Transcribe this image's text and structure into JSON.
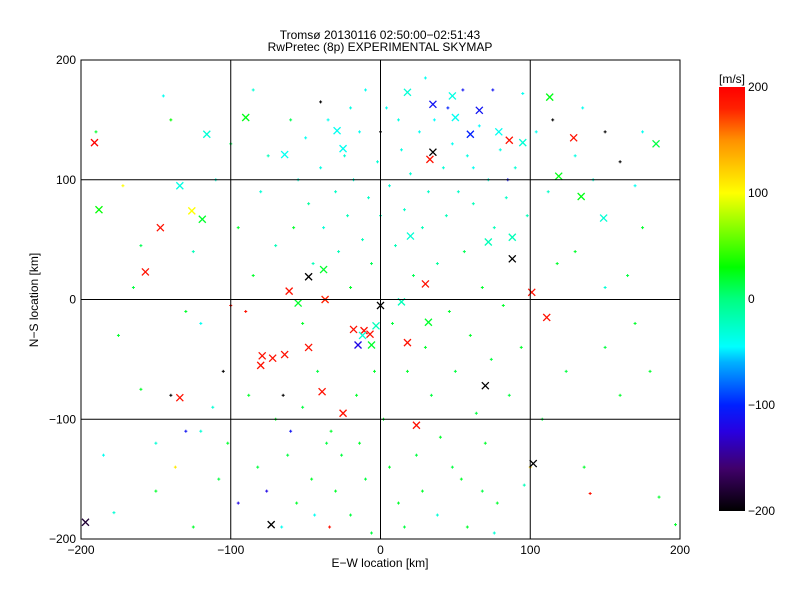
{
  "chart_data": {
    "type": "scatter",
    "title": "Tromsø 20130116 02:50:00−02:51:43",
    "subtitle": "RwPretec (8p) EXPERIMENTAL SKYMAP",
    "xlabel": "E−W location [km]",
    "ylabel": "N−S location [km]",
    "xlim": [
      -200,
      200
    ],
    "ylim": [
      -200,
      200
    ],
    "xticks": [
      -200,
      -100,
      0,
      100,
      200
    ],
    "yticks": [
      -200,
      -100,
      0,
      100,
      200
    ],
    "xtick_labels": [
      "−200",
      "−100",
      "0",
      "100",
      "200"
    ],
    "ytick_labels": [
      "−200",
      "−100",
      "0",
      "100",
      "200"
    ],
    "grid": true,
    "colorbar": {
      "label": "[m/s]",
      "range": [
        -200,
        200
      ],
      "ticks": [
        200,
        100,
        0,
        -100,
        -200
      ],
      "tick_labels": [
        "200",
        "100",
        "0",
        "−100",
        "−200"
      ],
      "stops": [
        {
          "v": -200,
          "color": "#000000"
        },
        {
          "v": -160,
          "color": "#40006a"
        },
        {
          "v": -125,
          "color": "#2800e0"
        },
        {
          "v": -100,
          "color": "#0020ff"
        },
        {
          "v": -60,
          "color": "#00b0ff"
        },
        {
          "v": -45,
          "color": "#00ffff"
        },
        {
          "v": 0,
          "color": "#00ff80"
        },
        {
          "v": 30,
          "color": "#00ff00"
        },
        {
          "v": 100,
          "color": "#ffff00"
        },
        {
          "v": 150,
          "color": "#ff9000"
        },
        {
          "v": 180,
          "color": "#ff2000"
        },
        {
          "v": 200,
          "color": "#ff0000"
        }
      ]
    },
    "series": [
      {
        "name": "large echoes (x markers)",
        "marker": "x",
        "points": [
          [
            -191,
            131,
            200
          ],
          [
            -188,
            75,
            30
          ],
          [
            -147,
            60,
            190
          ],
          [
            -157,
            23,
            190
          ],
          [
            -126,
            74,
            100
          ],
          [
            -119,
            67,
            20
          ],
          [
            -134,
            95,
            -35
          ],
          [
            -116,
            138,
            -30
          ],
          [
            -90,
            152,
            25
          ],
          [
            -48,
            19,
            -200
          ],
          [
            -38,
            25,
            20
          ],
          [
            -61,
            7,
            190
          ],
          [
            -37,
            0,
            180
          ],
          [
            -79,
            -47,
            190
          ],
          [
            -72,
            -49,
            190
          ],
          [
            -64,
            -46,
            190
          ],
          [
            -48,
            -40,
            190
          ],
          [
            -39,
            -77,
            190
          ],
          [
            -25,
            -95,
            190
          ],
          [
            -80,
            -55,
            190
          ],
          [
            -134,
            -82,
            190
          ],
          [
            -18,
            -25,
            190
          ],
          [
            -11,
            -26,
            190
          ],
          [
            -7,
            -29,
            190
          ],
          [
            -15,
            -38,
            -120
          ],
          [
            -6,
            -38,
            20
          ],
          [
            0,
            -5,
            -200
          ],
          [
            14,
            -2,
            -20
          ],
          [
            30,
            13,
            190
          ],
          [
            18,
            -36,
            190
          ],
          [
            32,
            -19,
            20
          ],
          [
            70,
            -72,
            -200
          ],
          [
            102,
            -137,
            -200
          ],
          [
            101,
            6,
            190
          ],
          [
            111,
            -15,
            190
          ],
          [
            24,
            -105,
            190
          ],
          [
            88,
            34,
            -200
          ],
          [
            88,
            52,
            -20
          ],
          [
            72,
            48,
            -20
          ],
          [
            35,
            123,
            -200
          ],
          [
            33,
            117,
            190
          ],
          [
            18,
            173,
            -30
          ],
          [
            35,
            163,
            -110
          ],
          [
            48,
            170,
            -35
          ],
          [
            66,
            158,
            -110
          ],
          [
            60,
            138,
            -100
          ],
          [
            79,
            140,
            -40
          ],
          [
            86,
            133,
            190
          ],
          [
            95,
            131,
            -30
          ],
          [
            113,
            169,
            25
          ],
          [
            129,
            135,
            190
          ],
          [
            134,
            86,
            25
          ],
          [
            149,
            68,
            -30
          ],
          [
            184,
            130,
            15
          ],
          [
            119,
            103,
            25
          ],
          [
            20,
            53,
            -30
          ],
          [
            -197,
            -186,
            -180
          ],
          [
            -73,
            -188,
            -200
          ],
          [
            -25,
            126,
            -40
          ],
          [
            -64,
            121,
            -40
          ],
          [
            -29,
            141,
            -40
          ],
          [
            50,
            152,
            -40
          ],
          [
            -12,
            -30,
            -30
          ],
          [
            -55,
            -3,
            20
          ],
          [
            -3,
            -22,
            -20
          ]
        ]
      },
      {
        "name": "small echoes (+ markers)",
        "marker": "+",
        "points": [
          [
            -160,
            45,
            10
          ],
          [
            -172,
            95,
            100
          ],
          [
            -140,
            150,
            30
          ],
          [
            -125,
            40,
            -20
          ],
          [
            -110,
            100,
            -30
          ],
          [
            -100,
            130,
            10
          ],
          [
            -95,
            60,
            20
          ],
          [
            -90,
            -10,
            190
          ],
          [
            -85,
            20,
            20
          ],
          [
            -80,
            90,
            -30
          ],
          [
            -75,
            120,
            -20
          ],
          [
            -70,
            45,
            -20
          ],
          [
            -65,
            -80,
            -200
          ],
          [
            -60,
            150,
            10
          ],
          [
            -58,
            60,
            20
          ],
          [
            -55,
            100,
            -30
          ],
          [
            -52,
            -20,
            20
          ],
          [
            -50,
            135,
            -40
          ],
          [
            -48,
            80,
            -10
          ],
          [
            -45,
            30,
            -20
          ],
          [
            -42,
            -60,
            15
          ],
          [
            -40,
            110,
            -35
          ],
          [
            -38,
            60,
            -30
          ],
          [
            -35,
            150,
            -40
          ],
          [
            -33,
            -110,
            20
          ],
          [
            -30,
            90,
            -25
          ],
          [
            -28,
            40,
            -20
          ],
          [
            -26,
            -130,
            15
          ],
          [
            -24,
            120,
            -30
          ],
          [
            -22,
            70,
            -20
          ],
          [
            -20,
            10,
            20
          ],
          [
            -18,
            100,
            -30
          ],
          [
            -16,
            -80,
            20
          ],
          [
            -14,
            140,
            -40
          ],
          [
            -12,
            50,
            -20
          ],
          [
            -10,
            -150,
            15
          ],
          [
            -8,
            85,
            -25
          ],
          [
            -6,
            30,
            10
          ],
          [
            -4,
            -60,
            20
          ],
          [
            -2,
            115,
            -30
          ],
          [
            0,
            70,
            -20
          ],
          [
            2,
            -100,
            20
          ],
          [
            4,
            160,
            -40
          ],
          [
            6,
            95,
            -30
          ],
          [
            8,
            -20,
            15
          ],
          [
            10,
            45,
            -20
          ],
          [
            12,
            -170,
            20
          ],
          [
            14,
            125,
            -35
          ],
          [
            16,
            75,
            -25
          ],
          [
            18,
            -60,
            20
          ],
          [
            20,
            105,
            -30
          ],
          [
            22,
            20,
            10
          ],
          [
            24,
            -130,
            15
          ],
          [
            26,
            140,
            -40
          ],
          [
            28,
            60,
            -20
          ],
          [
            30,
            -40,
            20
          ],
          [
            32,
            90,
            -25
          ],
          [
            34,
            -80,
            15
          ],
          [
            36,
            150,
            -45
          ],
          [
            38,
            30,
            -10
          ],
          [
            40,
            -115,
            20
          ],
          [
            42,
            110,
            -30
          ],
          [
            44,
            70,
            -20
          ],
          [
            46,
            -10,
            20
          ],
          [
            48,
            130,
            -40
          ],
          [
            50,
            -60,
            15
          ],
          [
            52,
            90,
            -25
          ],
          [
            54,
            -150,
            20
          ],
          [
            56,
            40,
            10
          ],
          [
            58,
            120,
            -35
          ],
          [
            60,
            -30,
            20
          ],
          [
            62,
            80,
            -20
          ],
          [
            64,
            -95,
            15
          ],
          [
            66,
            145,
            -45
          ],
          [
            68,
            10,
            20
          ],
          [
            70,
            -120,
            20
          ],
          [
            72,
            100,
            -30
          ],
          [
            74,
            -50,
            15
          ],
          [
            76,
            60,
            -20
          ],
          [
            78,
            -170,
            20
          ],
          [
            80,
            125,
            -35
          ],
          [
            82,
            -5,
            20
          ],
          [
            84,
            85,
            -25
          ],
          [
            86,
            -80,
            15
          ],
          [
            90,
            110,
            -30
          ],
          [
            94,
            -40,
            20
          ],
          [
            98,
            70,
            -20
          ],
          [
            104,
            140,
            -40
          ],
          [
            108,
            -100,
            15
          ],
          [
            112,
            90,
            -25
          ],
          [
            118,
            30,
            20
          ],
          [
            124,
            -60,
            15
          ],
          [
            130,
            120,
            -35
          ],
          [
            136,
            -140,
            20
          ],
          [
            142,
            100,
            -30
          ],
          [
            150,
            140,
            -200
          ],
          [
            160,
            115,
            -200
          ],
          [
            170,
            95,
            -40
          ],
          [
            186,
            -165,
            20
          ],
          [
            197,
            -188,
            20
          ],
          [
            -185,
            -130,
            -40
          ],
          [
            -178,
            -178,
            -30
          ],
          [
            -150,
            -160,
            20
          ],
          [
            -137,
            -140,
            110
          ],
          [
            -125,
            -190,
            20
          ],
          [
            -120,
            -110,
            -30
          ],
          [
            -108,
            -150,
            15
          ],
          [
            -102,
            -120,
            20
          ],
          [
            -95,
            -170,
            -120
          ],
          [
            -88,
            -80,
            20
          ],
          [
            -82,
            -140,
            15
          ],
          [
            -76,
            -160,
            -120
          ],
          [
            -70,
            -100,
            20
          ],
          [
            -66,
            -190,
            -40
          ],
          [
            -62,
            -130,
            15
          ],
          [
            -56,
            -170,
            20
          ],
          [
            -52,
            -90,
            15
          ],
          [
            -46,
            -150,
            20
          ],
          [
            -44,
            -180,
            -40
          ],
          [
            -36,
            -120,
            15
          ],
          [
            -34,
            -190,
            190
          ],
          [
            -30,
            -160,
            20
          ],
          [
            -20,
            -180,
            15
          ],
          [
            -14,
            -120,
            20
          ],
          [
            -6,
            -195,
            15
          ],
          [
            6,
            -140,
            20
          ],
          [
            16,
            -190,
            15
          ],
          [
            28,
            -160,
            20
          ],
          [
            38,
            -180,
            -30
          ],
          [
            48,
            -140,
            15
          ],
          [
            58,
            -190,
            20
          ],
          [
            68,
            -160,
            15
          ],
          [
            76,
            -195,
            -30
          ],
          [
            96,
            -155,
            -20
          ],
          [
            100,
            -140,
            120
          ],
          [
            140,
            -162,
            190
          ],
          [
            160,
            -80,
            20
          ],
          [
            150,
            -40,
            15
          ],
          [
            170,
            -20,
            20
          ],
          [
            180,
            -60,
            20
          ],
          [
            165,
            20,
            15
          ],
          [
            175,
            60,
            20
          ],
          [
            150,
            10,
            -30
          ],
          [
            130,
            40,
            20
          ],
          [
            -190,
            140,
            20
          ],
          [
            -175,
            -30,
            20
          ],
          [
            -160,
            -75,
            20
          ],
          [
            -150,
            -120,
            -30
          ],
          [
            -120,
            -20,
            -40
          ],
          [
            -112,
            -90,
            -30
          ],
          [
            -105,
            -60,
            -200
          ],
          [
            -100,
            -5,
            190
          ],
          [
            -140,
            -80,
            -200
          ],
          [
            -130,
            -10,
            20
          ],
          [
            -165,
            10,
            15
          ],
          [
            -145,
            170,
            -40
          ],
          [
            -85,
            175,
            -30
          ],
          [
            -40,
            165,
            -200
          ],
          [
            0,
            140,
            -200
          ],
          [
            -10,
            175,
            -40
          ],
          [
            30,
            185,
            -40
          ],
          [
            45,
            160,
            -100
          ],
          [
            55,
            175,
            -110
          ],
          [
            75,
            175,
            -110
          ],
          [
            95,
            172,
            -40
          ],
          [
            115,
            150,
            -200
          ],
          [
            135,
            160,
            -40
          ],
          [
            175,
            140,
            -40
          ],
          [
            -20,
            160,
            -35
          ],
          [
            12,
            150,
            -35
          ],
          [
            62,
            110,
            -40
          ],
          [
            85,
            100,
            -110
          ],
          [
            -60,
            -110,
            -110
          ],
          [
            -130,
            -110,
            -110
          ]
        ]
      }
    ]
  }
}
